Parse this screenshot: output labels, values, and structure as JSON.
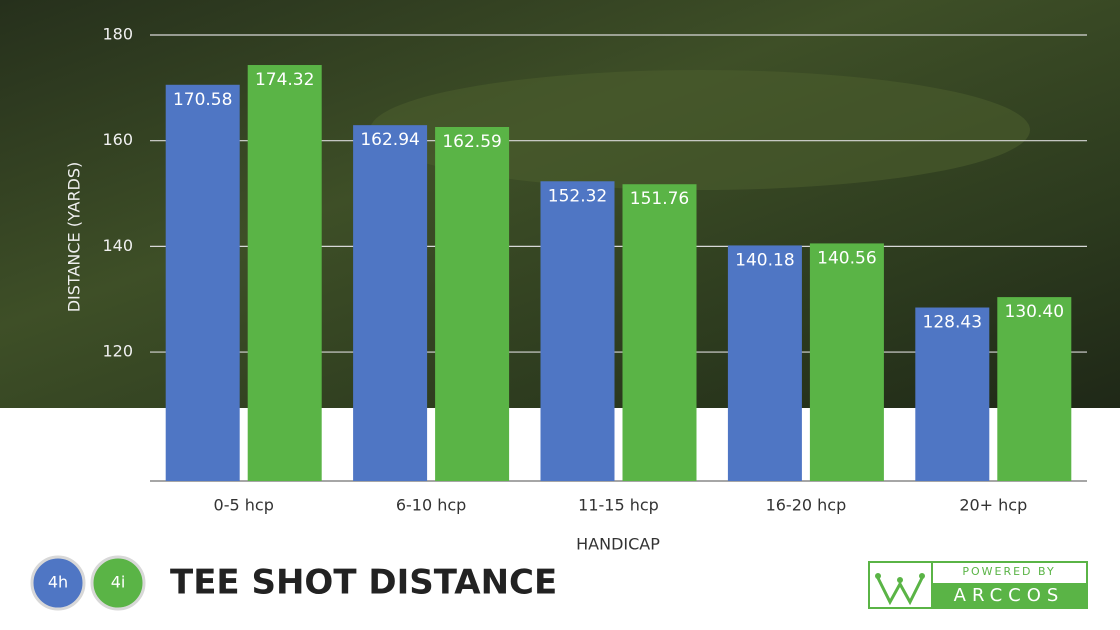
{
  "chart_data": {
    "type": "bar",
    "title": "TEE SHOT DISTANCE",
    "x_label": "HANDICAP",
    "y_label": "DISTANCE (YARDS)",
    "categories": [
      "0-5 hcp",
      "6-10 hcp",
      "11-15 hcp",
      "16-20 hcp",
      "20+ hcp"
    ],
    "series": [
      {
        "name": "4h",
        "color": "#4f76c4",
        "values": [
          170.58,
          162.94,
          152.32,
          140.18,
          128.43
        ],
        "value_labels": [
          "170.58",
          "162.94",
          "152.32",
          "140.18",
          "128.43"
        ]
      },
      {
        "name": "4i",
        "color": "#5ab446",
        "values": [
          174.32,
          162.59,
          151.76,
          140.56,
          130.4
        ],
        "value_labels": [
          "174.32",
          "162.59",
          "151.76",
          "140.56",
          "130.40"
        ]
      }
    ],
    "ylim": [
      95.6,
      180
    ],
    "yticks": [
      120,
      140,
      160,
      180
    ],
    "grid": true
  },
  "branding": {
    "tagline": "POWERED BY",
    "brand": "ARCCOS"
  }
}
